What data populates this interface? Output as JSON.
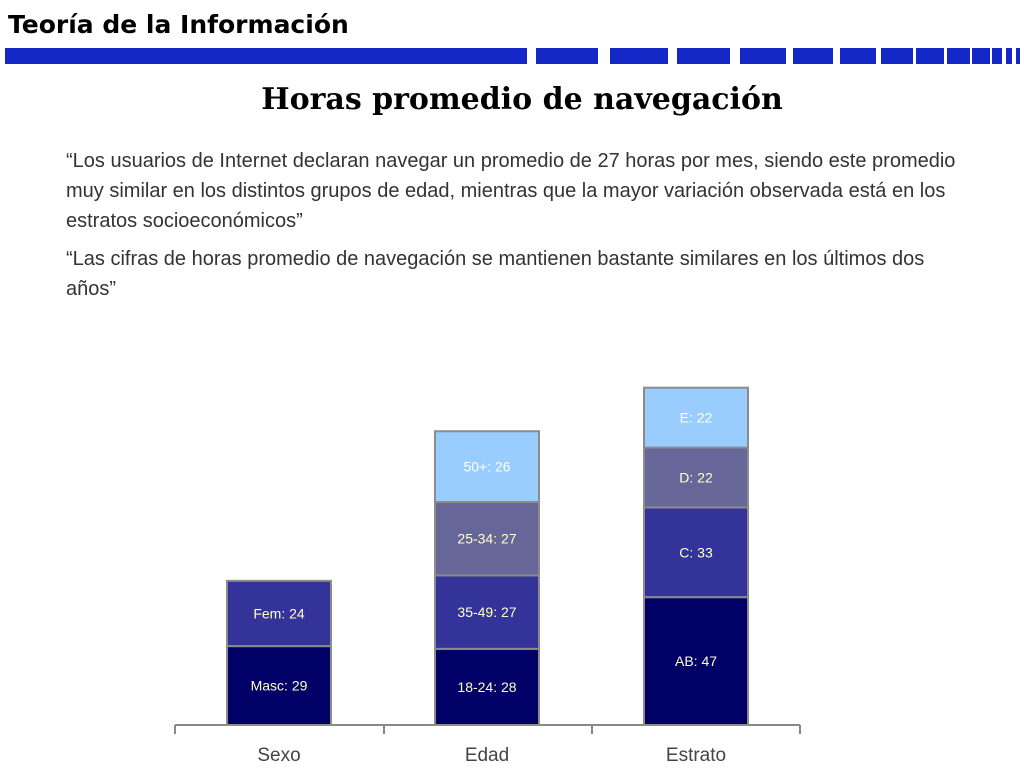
{
  "header": {
    "title": "Teoría de la Información"
  },
  "slide": {
    "title": "Horas promedio de navegación",
    "quotes": [
      "“Los usuarios de Internet declaran navegar un promedio de 27 horas por mes, siendo este promedio muy similar en los distintos grupos de edad, mientras que la mayor variación observada está en los estratos socioeconómicos”",
      "“Las cifras de horas promedio de navegación se mantienen bastante similares en los últimos dos años”"
    ]
  },
  "colors": {
    "header_bar": "#1428c8",
    "bar_border": "#8c8c8c",
    "label_text": "#ffffcc",
    "label_text_light": "#fffff0",
    "axis": "#888888"
  },
  "chart_data": {
    "type": "bar",
    "stacked": true,
    "categories": [
      "Sexo",
      "Edad",
      "Estrato"
    ],
    "stacks": [
      {
        "category": "Sexo",
        "segments": [
          {
            "label": "Masc: 29",
            "value": 29,
            "color": "#000066"
          },
          {
            "label": "Fem: 24",
            "value": 24,
            "color": "#333399"
          }
        ]
      },
      {
        "category": "Edad",
        "segments": [
          {
            "label": "18-24: 28",
            "value": 28,
            "color": "#000066"
          },
          {
            "label": "35-49: 27",
            "value": 27,
            "color": "#333399"
          },
          {
            "label": "25-34: 27",
            "value": 27,
            "color": "#666699"
          },
          {
            "label": "50+: 26",
            "value": 26,
            "color": "#99ccff"
          }
        ]
      },
      {
        "category": "Estrato",
        "segments": [
          {
            "label": "AB: 47",
            "value": 47,
            "color": "#000066"
          },
          {
            "label": "C: 33",
            "value": 33,
            "color": "#333399"
          },
          {
            "label": "D: 22",
            "value": 22,
            "color": "#666699"
          },
          {
            "label": "E: 22",
            "value": 22,
            "color": "#99ccff"
          }
        ]
      }
    ],
    "title": "",
    "xlabel": "",
    "ylabel": "",
    "grid": false,
    "legend": "none"
  }
}
